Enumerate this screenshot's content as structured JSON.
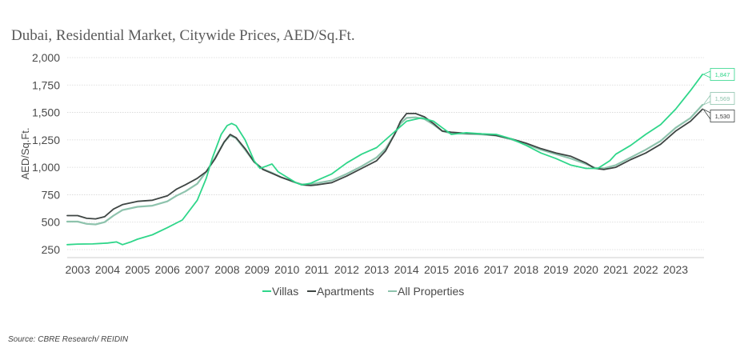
{
  "title": "Dubai, Residential Market, Citywide Prices, AED/Sq.Ft.",
  "source": "Source: CBRE Research/ REIDIN",
  "chart_data": {
    "type": "line",
    "title": "Dubai, Residential Market, Citywide Prices, AED/Sq.Ft.",
    "xlabel": "",
    "ylabel": "AED/Sq.Ft.",
    "ylim": [
      250,
      2000
    ],
    "xlim": [
      2002.65,
      2023.95
    ],
    "grid": true,
    "legend_position": "bottom",
    "yticks": [
      250,
      500,
      750,
      1000,
      1250,
      1500,
      1750,
      2000
    ],
    "ytick_labels": [
      "250",
      "500",
      "750",
      "1,000",
      "1,250",
      "1,500",
      "1,750",
      "2,000"
    ],
    "xtick_labels": [
      "2003",
      "2004",
      "2005",
      "2006",
      "2007",
      "2008",
      "2009",
      "2010",
      "2011",
      "2012",
      "2013",
      "2014",
      "2015",
      "2016",
      "2017",
      "2018",
      "2019",
      "2020",
      "2021",
      "2022",
      "2023"
    ],
    "xticks": [
      2003,
      2004,
      2005,
      2006,
      2007,
      2008,
      2009,
      2010,
      2011,
      2012,
      2013,
      2014,
      2015,
      2016,
      2017,
      2018,
      2019,
      2020,
      2021,
      2022,
      2023
    ],
    "series": [
      {
        "name": "Villas",
        "color": "#2fd68a",
        "end_label": "1,847",
        "points": [
          [
            2002.65,
            295
          ],
          [
            2003.0,
            300
          ],
          [
            2003.5,
            302
          ],
          [
            2004.0,
            310
          ],
          [
            2004.3,
            320
          ],
          [
            2004.5,
            295
          ],
          [
            2004.8,
            322
          ],
          [
            2005.0,
            345
          ],
          [
            2005.5,
            385
          ],
          [
            2006.0,
            450
          ],
          [
            2006.5,
            520
          ],
          [
            2007.0,
            700
          ],
          [
            2007.3,
            900
          ],
          [
            2007.5,
            1080
          ],
          [
            2007.8,
            1300
          ],
          [
            2008.0,
            1380
          ],
          [
            2008.15,
            1400
          ],
          [
            2008.3,
            1380
          ],
          [
            2008.6,
            1250
          ],
          [
            2008.9,
            1060
          ],
          [
            2009.1,
            990
          ],
          [
            2009.3,
            1010
          ],
          [
            2009.5,
            1030
          ],
          [
            2009.7,
            960
          ],
          [
            2010.0,
            910
          ],
          [
            2010.3,
            860
          ],
          [
            2010.5,
            840
          ],
          [
            2010.8,
            855
          ],
          [
            2011.0,
            880
          ],
          [
            2011.5,
            940
          ],
          [
            2012.0,
            1040
          ],
          [
            2012.5,
            1120
          ],
          [
            2013.0,
            1180
          ],
          [
            2013.5,
            1300
          ],
          [
            2014.0,
            1420
          ],
          [
            2014.5,
            1450
          ],
          [
            2014.9,
            1420
          ],
          [
            2015.2,
            1360
          ],
          [
            2015.5,
            1300
          ],
          [
            2016.0,
            1315
          ],
          [
            2016.5,
            1305
          ],
          [
            2017.0,
            1300
          ],
          [
            2017.5,
            1260
          ],
          [
            2018.0,
            1200
          ],
          [
            2018.5,
            1130
          ],
          [
            2019.0,
            1080
          ],
          [
            2019.5,
            1020
          ],
          [
            2020.0,
            990
          ],
          [
            2020.4,
            990
          ],
          [
            2020.8,
            1060
          ],
          [
            2021.0,
            1120
          ],
          [
            2021.5,
            1200
          ],
          [
            2022.0,
            1300
          ],
          [
            2022.5,
            1390
          ],
          [
            2023.0,
            1530
          ],
          [
            2023.5,
            1700
          ],
          [
            2023.9,
            1847
          ]
        ]
      },
      {
        "name": "Apartments",
        "color": "#3e4543",
        "end_label": "1,530",
        "points": [
          [
            2002.65,
            560
          ],
          [
            2003.0,
            560
          ],
          [
            2003.3,
            535
          ],
          [
            2003.6,
            530
          ],
          [
            2003.9,
            550
          ],
          [
            2004.2,
            620
          ],
          [
            2004.5,
            660
          ],
          [
            2005.0,
            690
          ],
          [
            2005.5,
            700
          ],
          [
            2006.0,
            740
          ],
          [
            2006.3,
            800
          ],
          [
            2006.6,
            840
          ],
          [
            2007.0,
            900
          ],
          [
            2007.3,
            960
          ],
          [
            2007.6,
            1080
          ],
          [
            2007.9,
            1230
          ],
          [
            2008.1,
            1300
          ],
          [
            2008.3,
            1270
          ],
          [
            2008.6,
            1170
          ],
          [
            2008.9,
            1050
          ],
          [
            2009.2,
            980
          ],
          [
            2009.5,
            945
          ],
          [
            2009.8,
            910
          ],
          [
            2010.0,
            890
          ],
          [
            2010.3,
            860
          ],
          [
            2010.5,
            840
          ],
          [
            2010.8,
            835
          ],
          [
            2011.0,
            840
          ],
          [
            2011.5,
            860
          ],
          [
            2012.0,
            920
          ],
          [
            2012.5,
            990
          ],
          [
            2013.0,
            1060
          ],
          [
            2013.3,
            1150
          ],
          [
            2013.6,
            1300
          ],
          [
            2013.8,
            1420
          ],
          [
            2014.0,
            1490
          ],
          [
            2014.3,
            1490
          ],
          [
            2014.6,
            1460
          ],
          [
            2014.9,
            1400
          ],
          [
            2015.2,
            1330
          ],
          [
            2015.5,
            1320
          ],
          [
            2016.0,
            1310
          ],
          [
            2016.5,
            1305
          ],
          [
            2017.0,
            1290
          ],
          [
            2017.5,
            1260
          ],
          [
            2018.0,
            1220
          ],
          [
            2018.5,
            1170
          ],
          [
            2019.0,
            1130
          ],
          [
            2019.5,
            1100
          ],
          [
            2020.0,
            1040
          ],
          [
            2020.3,
            990
          ],
          [
            2020.6,
            980
          ],
          [
            2021.0,
            1000
          ],
          [
            2021.5,
            1070
          ],
          [
            2022.0,
            1130
          ],
          [
            2022.5,
            1210
          ],
          [
            2023.0,
            1330
          ],
          [
            2023.5,
            1420
          ],
          [
            2023.9,
            1530
          ]
        ]
      },
      {
        "name": "All Properties",
        "color": "#8ec3ad",
        "end_label": "1,569",
        "points": [
          [
            2002.65,
            505
          ],
          [
            2003.0,
            505
          ],
          [
            2003.3,
            485
          ],
          [
            2003.6,
            480
          ],
          [
            2003.9,
            500
          ],
          [
            2004.2,
            560
          ],
          [
            2004.5,
            610
          ],
          [
            2005.0,
            640
          ],
          [
            2005.5,
            650
          ],
          [
            2006.0,
            690
          ],
          [
            2006.3,
            740
          ],
          [
            2006.6,
            780
          ],
          [
            2007.0,
            850
          ],
          [
            2007.3,
            960
          ],
          [
            2007.6,
            1090
          ],
          [
            2007.9,
            1230
          ],
          [
            2008.1,
            1290
          ],
          [
            2008.3,
            1265
          ],
          [
            2008.6,
            1160
          ],
          [
            2008.9,
            1050
          ],
          [
            2009.2,
            985
          ],
          [
            2009.5,
            950
          ],
          [
            2009.8,
            910
          ],
          [
            2010.0,
            890
          ],
          [
            2010.3,
            860
          ],
          [
            2010.5,
            845
          ],
          [
            2010.8,
            845
          ],
          [
            2011.0,
            855
          ],
          [
            2011.5,
            880
          ],
          [
            2012.0,
            940
          ],
          [
            2012.5,
            1010
          ],
          [
            2013.0,
            1090
          ],
          [
            2013.3,
            1170
          ],
          [
            2013.6,
            1300
          ],
          [
            2013.8,
            1400
          ],
          [
            2014.0,
            1450
          ],
          [
            2014.3,
            1455
          ],
          [
            2014.6,
            1440
          ],
          [
            2014.9,
            1390
          ],
          [
            2015.2,
            1330
          ],
          [
            2015.5,
            1310
          ],
          [
            2016.0,
            1305
          ],
          [
            2016.5,
            1300
          ],
          [
            2017.0,
            1290
          ],
          [
            2017.5,
            1255
          ],
          [
            2018.0,
            1210
          ],
          [
            2018.5,
            1160
          ],
          [
            2019.0,
            1120
          ],
          [
            2019.5,
            1080
          ],
          [
            2020.0,
            1030
          ],
          [
            2020.3,
            995
          ],
          [
            2020.6,
            990
          ],
          [
            2021.0,
            1020
          ],
          [
            2021.5,
            1090
          ],
          [
            2022.0,
            1160
          ],
          [
            2022.5,
            1240
          ],
          [
            2023.0,
            1360
          ],
          [
            2023.5,
            1450
          ],
          [
            2023.9,
            1569
          ]
        ]
      }
    ]
  }
}
